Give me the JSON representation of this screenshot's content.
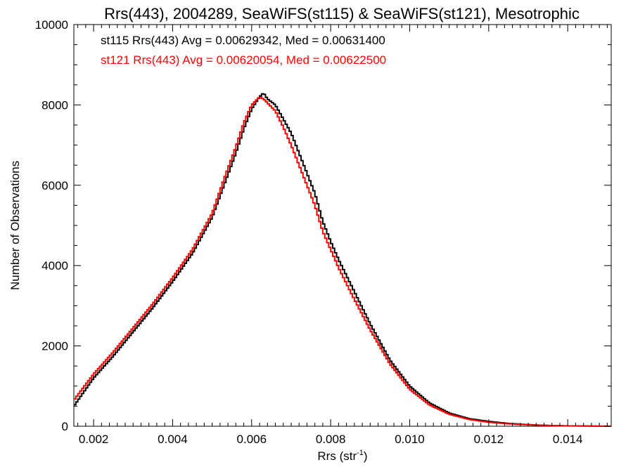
{
  "chart_data": {
    "type": "line",
    "title": "Rrs(443), 2004289, SeaWiFS(st115) & SeaWiFS(st121), Mesotrophic",
    "xlabel": "Rrs (str",
    "xlabel_sup": "-1",
    "xlabel_end": ")",
    "ylabel": "Number of Observations",
    "xlim": [
      0.0015,
      0.0151
    ],
    "ylim": [
      0,
      10000
    ],
    "x_ticks": [
      "0.002",
      "0.004",
      "0.006",
      "0.008",
      "0.010",
      "0.012",
      "0.014"
    ],
    "y_ticks": [
      "0",
      "2000",
      "4000",
      "6000",
      "8000",
      "10000"
    ],
    "grid": false,
    "series": [
      {
        "name": "st115",
        "color": "#000000",
        "annotation": "st115 Rrs(443) Avg = 0.00629342, Med = 0.00631400",
        "x": [
          0.0015,
          0.002,
          0.0025,
          0.003,
          0.0035,
          0.004,
          0.0045,
          0.005,
          0.0053,
          0.0056,
          0.0058,
          0.006,
          0.0062,
          0.0063,
          0.0064,
          0.0066,
          0.0068,
          0.007,
          0.0072,
          0.0074,
          0.0076,
          0.0078,
          0.008,
          0.0082,
          0.0085,
          0.009,
          0.0095,
          0.01,
          0.0105,
          0.011,
          0.0115,
          0.012,
          0.0125,
          0.013,
          0.0135,
          0.014,
          0.0151
        ],
        "y": [
          500,
          1200,
          1750,
          2350,
          2950,
          3600,
          4300,
          5200,
          6000,
          6800,
          7400,
          7900,
          8200,
          8300,
          8150,
          8000,
          7650,
          7300,
          6800,
          6300,
          5800,
          5100,
          4600,
          4150,
          3550,
          2550,
          1650,
          1000,
          580,
          330,
          190,
          120,
          70,
          40,
          20,
          10,
          0
        ]
      },
      {
        "name": "st121",
        "color": "#ff0000",
        "annotation": "st121 Rrs(443) Avg = 0.00620054, Med = 0.00622500",
        "x": [
          0.0015,
          0.002,
          0.0025,
          0.003,
          0.0035,
          0.004,
          0.0045,
          0.005,
          0.0053,
          0.0056,
          0.0058,
          0.006,
          0.0062,
          0.0063,
          0.0064,
          0.0066,
          0.0068,
          0.007,
          0.0072,
          0.0074,
          0.0076,
          0.0078,
          0.008,
          0.0082,
          0.0085,
          0.009,
          0.0095,
          0.01,
          0.0105,
          0.011,
          0.0115,
          0.012,
          0.0125,
          0.013,
          0.0135,
          0.014,
          0.0151
        ],
        "y": [
          650,
          1300,
          1850,
          2450,
          3050,
          3700,
          4400,
          5300,
          6150,
          6950,
          7550,
          8000,
          8200,
          8150,
          8050,
          7850,
          7450,
          7000,
          6500,
          6000,
          5500,
          4850,
          4400,
          3950,
          3350,
          2400,
          1550,
          920,
          530,
          300,
          170,
          100,
          60,
          35,
          18,
          8,
          0
        ]
      }
    ]
  }
}
